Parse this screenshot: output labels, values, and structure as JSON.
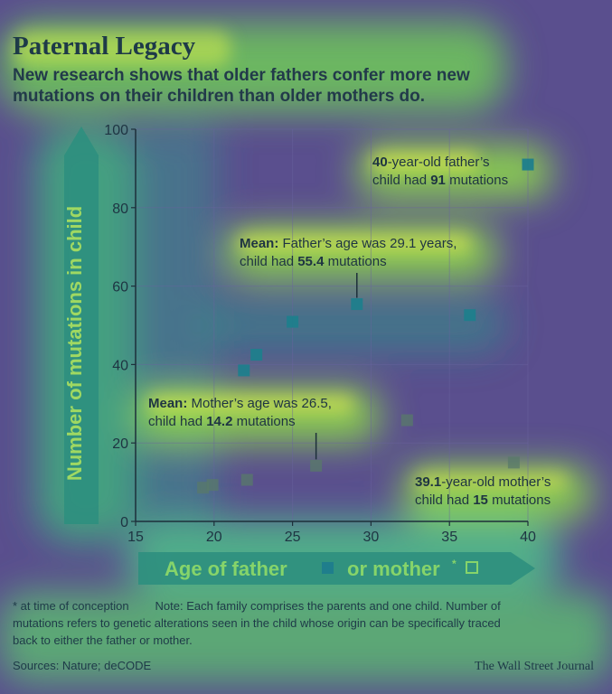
{
  "header": {
    "title": "Paternal Legacy",
    "subtitle_line1": "New research shows that older fathers confer more new",
    "subtitle_line2": "mutations on their children than older mothers do."
  },
  "colors": {
    "background": "#5a4f8e",
    "heat_green": "#8ed84a",
    "heat_yellow": "#e8f04a",
    "heat_teal": "#2aa58a",
    "father_marker": "#1f7e8c",
    "mother_marker": "#587a6a",
    "axis": "#1d2f3a",
    "text_dark": "#1e3442",
    "text_light": "#d8f06a"
  },
  "chart_data": {
    "type": "scatter",
    "ylabel": "Number of mutations in child",
    "xlabel_part1": "Age of father",
    "xlabel_part2": "or mother",
    "xlabel_asterisk": "*",
    "xlim": [
      15,
      40
    ],
    "ylim": [
      0,
      100
    ],
    "x_ticks": [
      "15",
      "20",
      "25",
      "30",
      "35",
      "40"
    ],
    "y_ticks": [
      "0",
      "20",
      "40",
      "60",
      "80",
      "100"
    ],
    "grid": true,
    "legend": "in x-axis label",
    "series": [
      {
        "name": "father",
        "marker": "filled square",
        "points": [
          [
            21.9,
            38.5
          ],
          [
            22.7,
            42.5
          ],
          [
            25.0,
            50.9
          ],
          [
            29.1,
            55.4
          ],
          [
            36.3,
            52.6
          ],
          [
            40.0,
            91.0
          ]
        ]
      },
      {
        "name": "mother",
        "marker": "open square",
        "points": [
          [
            19.3,
            8.6
          ],
          [
            19.9,
            9.3
          ],
          [
            22.1,
            10.6
          ],
          [
            26.5,
            14.2
          ],
          [
            32.3,
            25.8
          ],
          [
            39.1,
            15.0
          ]
        ]
      }
    ],
    "annotations": [
      {
        "id": "a40",
        "lines": [
          [
            {
              "t": "40",
              "b": true
            },
            {
              "t": "-year-old father’s",
              "b": false
            }
          ],
          [
            {
              "t": "child had ",
              "b": false
            },
            {
              "t": "91",
              "b": true
            },
            {
              "t": " mutations",
              "b": false
            }
          ]
        ]
      },
      {
        "id": "afmean",
        "lines": [
          [
            {
              "t": "Mean:",
              "b": true
            },
            {
              "t": " Father’s age was 29.1 years,",
              "b": false
            }
          ],
          [
            {
              "t": "child had ",
              "b": false
            },
            {
              "t": "55.4",
              "b": true
            },
            {
              "t": " mutations",
              "b": false
            }
          ]
        ]
      },
      {
        "id": "ammean",
        "lines": [
          [
            {
              "t": "Mean:",
              "b": true
            },
            {
              "t": " Mother’s age was 26.5,",
              "b": false
            }
          ],
          [
            {
              "t": "child had ",
              "b": false
            },
            {
              "t": "14.2",
              "b": true
            },
            {
              "t": " mutations",
              "b": false
            }
          ]
        ]
      },
      {
        "id": "a39",
        "lines": [
          [
            {
              "t": "39.1",
              "b": true
            },
            {
              "t": "-year-old mother’s",
              "b": false
            }
          ],
          [
            {
              "t": "child had ",
              "b": false
            },
            {
              "t": "15",
              "b": true
            },
            {
              "t": " mutations",
              "b": false
            }
          ]
        ]
      }
    ]
  },
  "footer": {
    "note_line1": "* at time of conception        Note: Each family comprises the parents and one child. Number of",
    "note_line2": "mutations refers to genetic alterations seen in the child whose origin can be specifically traced",
    "note_line3": "back to either the father or mother.",
    "sources": "Sources: Nature; deCODE",
    "credit": "The Wall Street Journal"
  }
}
